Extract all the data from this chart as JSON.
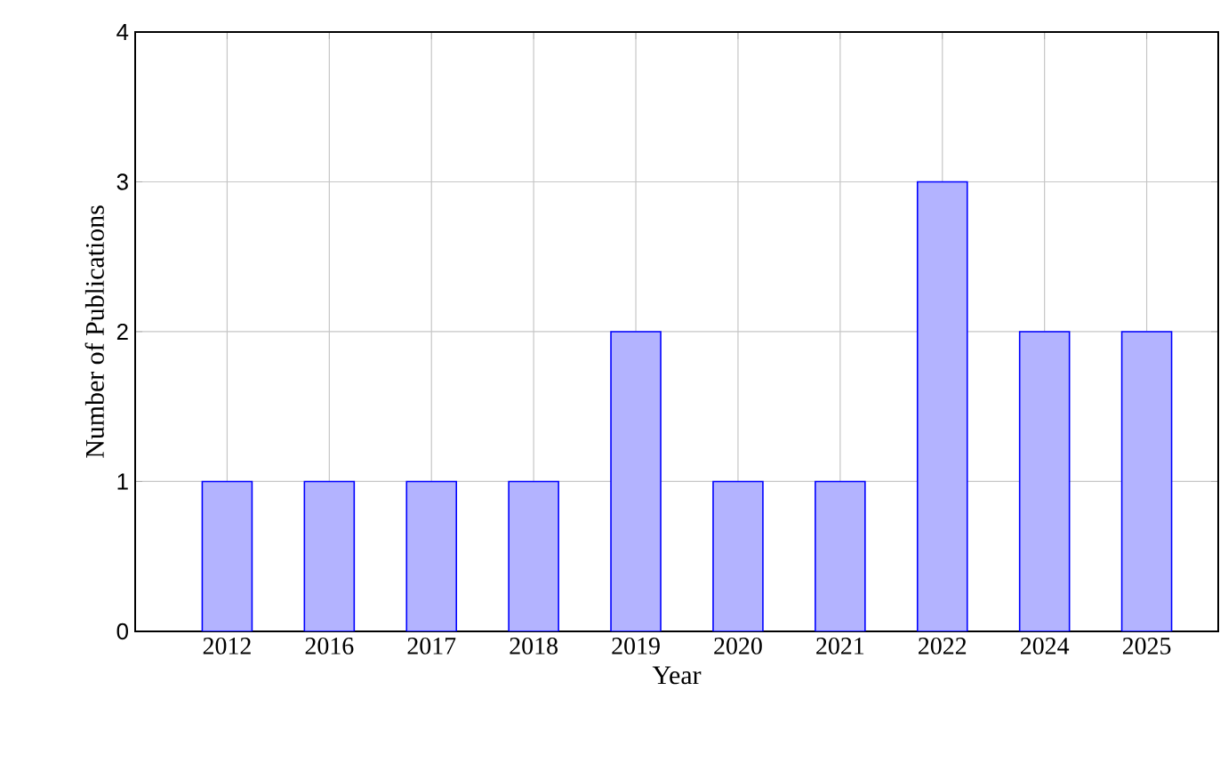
{
  "chart_data": {
    "type": "bar",
    "xlabel": "Year",
    "ylabel": "Number of Publications",
    "categories": [
      "2012",
      "2016",
      "2017",
      "2018",
      "2019",
      "2020",
      "2021",
      "2022",
      "2024",
      "2025"
    ],
    "values": [
      1,
      1,
      1,
      1,
      2,
      1,
      1,
      3,
      2,
      2
    ],
    "color": "#b3b3ff",
    "ylim": [
      0,
      4
    ],
    "yticks": [
      0,
      1,
      2,
      3,
      4
    ],
    "grid": true
  }
}
